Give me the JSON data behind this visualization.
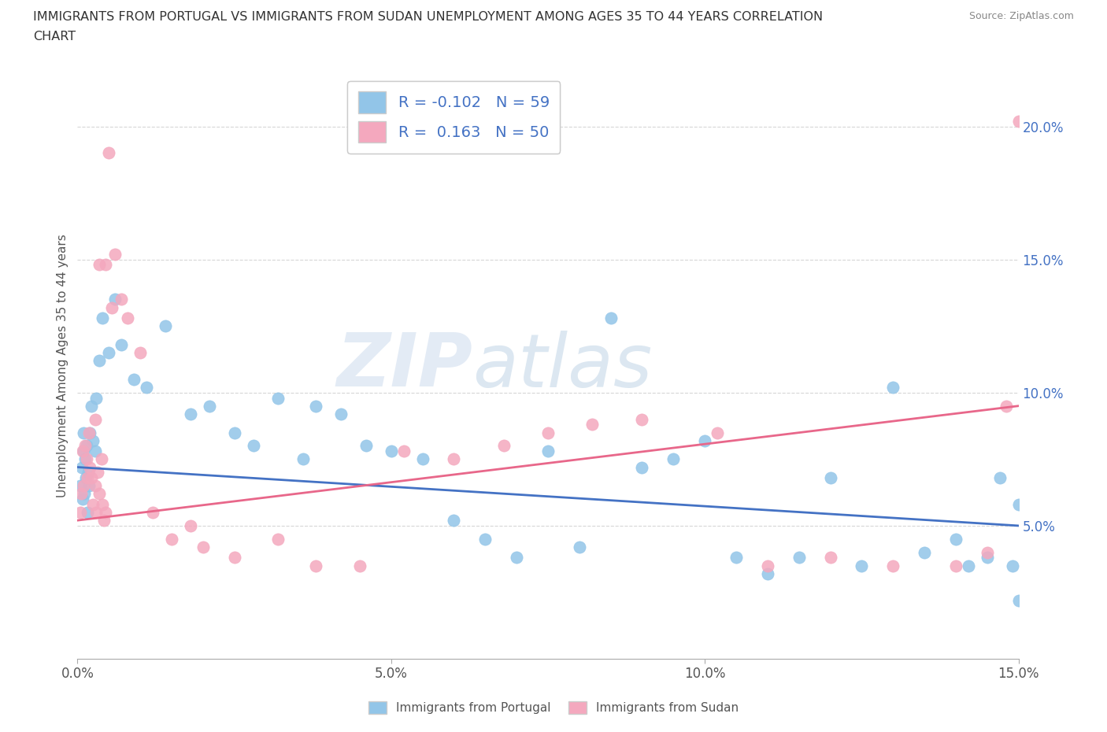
{
  "title_line1": "IMMIGRANTS FROM PORTUGAL VS IMMIGRANTS FROM SUDAN UNEMPLOYMENT AMONG AGES 35 TO 44 YEARS CORRELATION",
  "title_line2": "CHART",
  "source": "Source: ZipAtlas.com",
  "ylabel": "Unemployment Among Ages 35 to 44 years",
  "xlabel_portugal": "Immigrants from Portugal",
  "xlabel_sudan": "Immigrants from Sudan",
  "xlim": [
    0.0,
    15.0
  ],
  "ylim": [
    0.0,
    22.0
  ],
  "x_ticks": [
    0.0,
    5.0,
    10.0,
    15.0
  ],
  "y_ticks": [
    5.0,
    10.0,
    15.0,
    20.0
  ],
  "portugal_color": "#92C5E8",
  "sudan_color": "#F4A8BE",
  "portugal_line_color": "#4472C4",
  "sudan_line_color": "#E8678A",
  "R_portugal": -0.102,
  "N_portugal": 59,
  "R_sudan": 0.163,
  "N_sudan": 50,
  "watermark_zip": "ZIP",
  "watermark_atlas": "atlas",
  "portugal_x": [
    0.05,
    0.07,
    0.08,
    0.09,
    0.1,
    0.11,
    0.12,
    0.13,
    0.15,
    0.16,
    0.17,
    0.18,
    0.2,
    0.22,
    0.25,
    0.28,
    0.3,
    0.35,
    0.4,
    0.5,
    0.6,
    0.7,
    0.9,
    1.1,
    1.4,
    1.8,
    2.1,
    2.5,
    2.8,
    3.2,
    3.6,
    3.8,
    4.2,
    4.6,
    5.0,
    5.5,
    6.0,
    6.5,
    7.0,
    7.5,
    8.0,
    8.5,
    9.0,
    9.5,
    10.0,
    10.5,
    11.0,
    11.5,
    12.0,
    12.5,
    13.0,
    13.5,
    14.0,
    14.2,
    14.5,
    14.7,
    14.9,
    15.0,
    15.0
  ],
  "portugal_y": [
    6.5,
    7.2,
    6.0,
    8.5,
    7.8,
    6.2,
    7.5,
    6.8,
    8.0,
    5.5,
    7.0,
    6.5,
    8.5,
    9.5,
    8.2,
    7.8,
    9.8,
    11.2,
    12.8,
    11.5,
    13.5,
    11.8,
    10.5,
    10.2,
    12.5,
    9.2,
    9.5,
    8.5,
    8.0,
    9.8,
    7.5,
    9.5,
    9.2,
    8.0,
    7.8,
    7.5,
    5.2,
    4.5,
    3.8,
    7.8,
    4.2,
    12.8,
    7.2,
    7.5,
    8.2,
    3.8,
    3.2,
    3.8,
    6.8,
    3.5,
    10.2,
    4.0,
    4.5,
    3.5,
    3.8,
    6.8,
    3.5,
    2.2,
    5.8
  ],
  "sudan_x": [
    0.04,
    0.06,
    0.08,
    0.1,
    0.12,
    0.14,
    0.16,
    0.18,
    0.2,
    0.22,
    0.25,
    0.28,
    0.3,
    0.32,
    0.35,
    0.38,
    0.4,
    0.45,
    0.5,
    0.6,
    0.7,
    0.8,
    1.0,
    1.2,
    1.5,
    2.0,
    2.5,
    3.2,
    3.8,
    4.5,
    5.2,
    6.0,
    6.8,
    7.5,
    8.2,
    9.0,
    10.2,
    11.0,
    12.0,
    13.0,
    14.0,
    14.5,
    14.8,
    15.0,
    0.45,
    0.55,
    0.35,
    0.42,
    1.8,
    0.28
  ],
  "sudan_y": [
    5.5,
    6.2,
    7.8,
    6.5,
    8.0,
    7.5,
    6.8,
    8.5,
    7.2,
    6.8,
    5.8,
    6.5,
    5.5,
    7.0,
    6.2,
    7.5,
    5.8,
    5.5,
    19.0,
    15.2,
    13.5,
    12.8,
    11.5,
    5.5,
    4.5,
    4.2,
    3.8,
    4.5,
    3.5,
    3.5,
    7.8,
    7.5,
    8.0,
    8.5,
    8.8,
    9.0,
    8.5,
    3.5,
    3.8,
    3.5,
    3.5,
    4.0,
    9.5,
    20.2,
    14.8,
    13.2,
    14.8,
    5.2,
    5.0,
    9.0
  ],
  "portugal_trend_x": [
    0.0,
    15.0
  ],
  "portugal_trend_y": [
    7.2,
    5.0
  ],
  "sudan_trend_x": [
    0.0,
    15.0
  ],
  "sudan_trend_y": [
    5.2,
    9.5
  ]
}
